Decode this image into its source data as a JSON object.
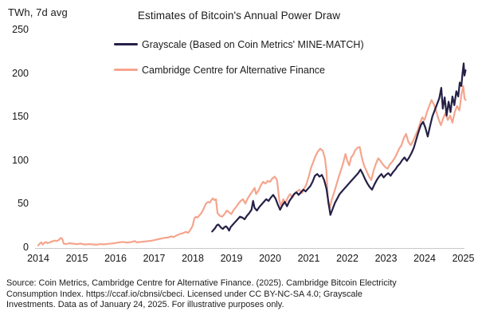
{
  "source": {
    "lines": [
      "Source: Coin Metrics, Cambridge Centre for Alternative Finance. (2025). Cambridge Bitcoin Electricity",
      "Consumption Index. https://ccaf.io/cbnsi/cbeci. Licensed under CC BY-NC-SA 4.0; Grayscale",
      "Investments. Data as of January 24, 2025. For illustrative purposes only."
    ]
  },
  "chart_data": {
    "type": "line",
    "title": "Estimates of Bitcoin's Annual Power Draw",
    "unit_label": "TWh, 7d avg",
    "xlabel": "",
    "ylabel": "TWh, 7d avg",
    "xlim": [
      2014,
      2025.1
    ],
    "ylim": [
      0,
      250
    ],
    "x_ticks": [
      2014,
      2015,
      2016,
      2017,
      2018,
      2019,
      2020,
      2021,
      2022,
      2023,
      2024,
      2025
    ],
    "y_ticks": [
      0,
      50,
      100,
      150,
      200,
      250
    ],
    "grid": false,
    "legend_position": "top",
    "axis_color": "#c9c9c9",
    "series": [
      {
        "id": "grayscale",
        "name": "Grayscale (Based on Coin Metrics' MINE-MATCH)",
        "color": "#252047",
        "points": [
          [
            2018.5,
            19
          ],
          [
            2018.54,
            21
          ],
          [
            2018.58,
            23
          ],
          [
            2018.62,
            26
          ],
          [
            2018.66,
            27
          ],
          [
            2018.7,
            25
          ],
          [
            2018.74,
            23
          ],
          [
            2018.78,
            22
          ],
          [
            2018.82,
            24
          ],
          [
            2018.86,
            25
          ],
          [
            2018.9,
            23
          ],
          [
            2018.94,
            20
          ],
          [
            2018.98,
            24
          ],
          [
            2019.04,
            27
          ],
          [
            2019.1,
            30
          ],
          [
            2019.16,
            33
          ],
          [
            2019.22,
            36
          ],
          [
            2019.28,
            35
          ],
          [
            2019.34,
            33
          ],
          [
            2019.4,
            37
          ],
          [
            2019.46,
            40
          ],
          [
            2019.52,
            44
          ],
          [
            2019.56,
            54
          ],
          [
            2019.6,
            46
          ],
          [
            2019.66,
            43
          ],
          [
            2019.72,
            47
          ],
          [
            2019.78,
            50
          ],
          [
            2019.84,
            53
          ],
          [
            2019.9,
            56
          ],
          [
            2019.96,
            54
          ],
          [
            2020.02,
            58
          ],
          [
            2020.08,
            61
          ],
          [
            2020.14,
            57
          ],
          [
            2020.2,
            50
          ],
          [
            2020.26,
            44
          ],
          [
            2020.32,
            49
          ],
          [
            2020.38,
            53
          ],
          [
            2020.44,
            48
          ],
          [
            2020.5,
            54
          ],
          [
            2020.56,
            58
          ],
          [
            2020.62,
            62
          ],
          [
            2020.68,
            64
          ],
          [
            2020.74,
            61
          ],
          [
            2020.8,
            64
          ],
          [
            2020.86,
            67
          ],
          [
            2020.92,
            65
          ],
          [
            2020.98,
            68
          ],
          [
            2021.04,
            71
          ],
          [
            2021.1,
            76
          ],
          [
            2021.16,
            83
          ],
          [
            2021.22,
            85
          ],
          [
            2021.28,
            82
          ],
          [
            2021.34,
            84
          ],
          [
            2021.4,
            78
          ],
          [
            2021.46,
            68
          ],
          [
            2021.52,
            50
          ],
          [
            2021.56,
            38
          ],
          [
            2021.62,
            45
          ],
          [
            2021.68,
            52
          ],
          [
            2021.74,
            57
          ],
          [
            2021.8,
            62
          ],
          [
            2021.86,
            65
          ],
          [
            2021.92,
            68
          ],
          [
            2021.98,
            71
          ],
          [
            2022.04,
            74
          ],
          [
            2022.1,
            77
          ],
          [
            2022.16,
            80
          ],
          [
            2022.22,
            83
          ],
          [
            2022.28,
            86
          ],
          [
            2022.34,
            90
          ],
          [
            2022.4,
            85
          ],
          [
            2022.46,
            79
          ],
          [
            2022.52,
            74
          ],
          [
            2022.58,
            70
          ],
          [
            2022.64,
            67
          ],
          [
            2022.7,
            73
          ],
          [
            2022.76,
            78
          ],
          [
            2022.82,
            82
          ],
          [
            2022.88,
            85
          ],
          [
            2022.94,
            81
          ],
          [
            2023.0,
            84
          ],
          [
            2023.06,
            86
          ],
          [
            2023.12,
            83
          ],
          [
            2023.18,
            87
          ],
          [
            2023.24,
            90
          ],
          [
            2023.3,
            94
          ],
          [
            2023.36,
            97
          ],
          [
            2023.42,
            101
          ],
          [
            2023.48,
            104
          ],
          [
            2023.54,
            100
          ],
          [
            2023.6,
            104
          ],
          [
            2023.66,
            109
          ],
          [
            2023.72,
            115
          ],
          [
            2023.78,
            124
          ],
          [
            2023.84,
            133
          ],
          [
            2023.9,
            141
          ],
          [
            2023.96,
            145
          ],
          [
            2024.02,
            138
          ],
          [
            2024.08,
            128
          ],
          [
            2024.14,
            140
          ],
          [
            2024.2,
            151
          ],
          [
            2024.26,
            158
          ],
          [
            2024.32,
            165
          ],
          [
            2024.38,
            172
          ],
          [
            2024.43,
            184
          ],
          [
            2024.47,
            160
          ],
          [
            2024.52,
            173
          ],
          [
            2024.57,
            152
          ],
          [
            2024.62,
            168
          ],
          [
            2024.67,
            156
          ],
          [
            2024.72,
            174
          ],
          [
            2024.77,
            164
          ],
          [
            2024.82,
            180
          ],
          [
            2024.87,
            174
          ],
          [
            2024.91,
            190
          ],
          [
            2024.95,
            186
          ],
          [
            2024.98,
            200
          ],
          [
            2025.01,
            212
          ],
          [
            2025.03,
            198
          ],
          [
            2025.06,
            204
          ]
        ]
      },
      {
        "id": "cambridge",
        "name": "Cambridge Centre for Alternative Finance",
        "color": "#F5A58D",
        "points": [
          [
            2014.0,
            3
          ],
          [
            2014.04,
            5
          ],
          [
            2014.08,
            6.5
          ],
          [
            2014.12,
            4
          ],
          [
            2014.16,
            6
          ],
          [
            2014.2,
            7
          ],
          [
            2014.24,
            5.5
          ],
          [
            2014.3,
            6.5
          ],
          [
            2014.36,
            7.5
          ],
          [
            2014.42,
            8.5
          ],
          [
            2014.48,
            8
          ],
          [
            2014.54,
            9.5
          ],
          [
            2014.58,
            11.5
          ],
          [
            2014.62,
            10.5
          ],
          [
            2014.66,
            5
          ],
          [
            2014.72,
            4.5
          ],
          [
            2014.8,
            5.5
          ],
          [
            2014.9,
            5
          ],
          [
            2015.0,
            4.5
          ],
          [
            2015.1,
            5
          ],
          [
            2015.2,
            4
          ],
          [
            2015.3,
            4.5
          ],
          [
            2015.4,
            4.2
          ],
          [
            2015.5,
            3.8
          ],
          [
            2015.6,
            4.5
          ],
          [
            2015.7,
            4.2
          ],
          [
            2015.8,
            4.8
          ],
          [
            2015.9,
            5.2
          ],
          [
            2016.0,
            5.8
          ],
          [
            2016.1,
            6.5
          ],
          [
            2016.2,
            7
          ],
          [
            2016.3,
            6.2
          ],
          [
            2016.4,
            6.8
          ],
          [
            2016.5,
            8
          ],
          [
            2016.55,
            6.5
          ],
          [
            2016.65,
            7
          ],
          [
            2016.75,
            7.5
          ],
          [
            2016.85,
            8
          ],
          [
            2016.95,
            8.5
          ],
          [
            2017.05,
            9.5
          ],
          [
            2017.15,
            10.5
          ],
          [
            2017.25,
            11.5
          ],
          [
            2017.35,
            12
          ],
          [
            2017.45,
            13.5
          ],
          [
            2017.5,
            12.5
          ],
          [
            2017.58,
            14.5
          ],
          [
            2017.66,
            16
          ],
          [
            2017.74,
            17
          ],
          [
            2017.82,
            18.5
          ],
          [
            2017.88,
            17.5
          ],
          [
            2017.94,
            21
          ],
          [
            2018.0,
            26
          ],
          [
            2018.04,
            34
          ],
          [
            2018.08,
            36
          ],
          [
            2018.12,
            35
          ],
          [
            2018.16,
            37
          ],
          [
            2018.22,
            40
          ],
          [
            2018.28,
            45
          ],
          [
            2018.34,
            51
          ],
          [
            2018.4,
            53
          ],
          [
            2018.44,
            52
          ],
          [
            2018.48,
            55
          ],
          [
            2018.52,
            57
          ],
          [
            2018.56,
            55
          ],
          [
            2018.6,
            56
          ],
          [
            2018.64,
            40
          ],
          [
            2018.7,
            37
          ],
          [
            2018.76,
            36
          ],
          [
            2018.82,
            39
          ],
          [
            2018.88,
            43
          ],
          [
            2018.94,
            41
          ],
          [
            2019.0,
            39
          ],
          [
            2019.06,
            44
          ],
          [
            2019.12,
            47
          ],
          [
            2019.18,
            51
          ],
          [
            2019.24,
            54
          ],
          [
            2019.3,
            56
          ],
          [
            2019.36,
            51
          ],
          [
            2019.42,
            57
          ],
          [
            2019.48,
            61
          ],
          [
            2019.54,
            65
          ],
          [
            2019.6,
            69
          ],
          [
            2019.64,
            62
          ],
          [
            2019.7,
            66
          ],
          [
            2019.76,
            72
          ],
          [
            2019.82,
            76
          ],
          [
            2019.88,
            74
          ],
          [
            2019.94,
            77
          ],
          [
            2020.0,
            76
          ],
          [
            2020.06,
            80
          ],
          [
            2020.12,
            82
          ],
          [
            2020.18,
            78
          ],
          [
            2020.24,
            55
          ],
          [
            2020.28,
            48
          ],
          [
            2020.34,
            56
          ],
          [
            2020.4,
            52
          ],
          [
            2020.46,
            58
          ],
          [
            2020.52,
            62
          ],
          [
            2020.58,
            58
          ],
          [
            2020.64,
            62
          ],
          [
            2020.7,
            65
          ],
          [
            2020.76,
            67
          ],
          [
            2020.82,
            63
          ],
          [
            2020.88,
            68
          ],
          [
            2020.94,
            73
          ],
          [
            2021.0,
            82
          ],
          [
            2021.06,
            92
          ],
          [
            2021.12,
            99
          ],
          [
            2021.18,
            106
          ],
          [
            2021.24,
            111
          ],
          [
            2021.3,
            114
          ],
          [
            2021.36,
            112
          ],
          [
            2021.42,
            103
          ],
          [
            2021.46,
            88
          ],
          [
            2021.5,
            52
          ],
          [
            2021.54,
            45
          ],
          [
            2021.6,
            56
          ],
          [
            2021.66,
            64
          ],
          [
            2021.72,
            73
          ],
          [
            2021.78,
            82
          ],
          [
            2021.84,
            90
          ],
          [
            2021.9,
            99
          ],
          [
            2021.95,
            108
          ],
          [
            2022.0,
            100
          ],
          [
            2022.05,
            95
          ],
          [
            2022.1,
            104
          ],
          [
            2022.15,
            107
          ],
          [
            2022.2,
            112
          ],
          [
            2022.26,
            115
          ],
          [
            2022.32,
            116
          ],
          [
            2022.38,
            103
          ],
          [
            2022.44,
            94
          ],
          [
            2022.5,
            88
          ],
          [
            2022.56,
            82
          ],
          [
            2022.62,
            78
          ],
          [
            2022.68,
            89
          ],
          [
            2022.74,
            97
          ],
          [
            2022.8,
            103
          ],
          [
            2022.86,
            100
          ],
          [
            2022.92,
            96
          ],
          [
            2022.98,
            93
          ],
          [
            2023.04,
            91
          ],
          [
            2023.1,
            96
          ],
          [
            2023.16,
            99
          ],
          [
            2023.22,
            103
          ],
          [
            2023.28,
            108
          ],
          [
            2023.34,
            114
          ],
          [
            2023.4,
            118
          ],
          [
            2023.46,
            126
          ],
          [
            2023.52,
            131
          ],
          [
            2023.58,
            122
          ],
          [
            2023.64,
            118
          ],
          [
            2023.7,
            123
          ],
          [
            2023.76,
            129
          ],
          [
            2023.82,
            135
          ],
          [
            2023.88,
            143
          ],
          [
            2023.94,
            150
          ],
          [
            2024.0,
            147
          ],
          [
            2024.06,
            156
          ],
          [
            2024.12,
            163
          ],
          [
            2024.18,
            170
          ],
          [
            2024.24,
            165
          ],
          [
            2024.3,
            157
          ],
          [
            2024.36,
            148
          ],
          [
            2024.42,
            141
          ],
          [
            2024.48,
            149
          ],
          [
            2024.54,
            155
          ],
          [
            2024.6,
            147
          ],
          [
            2024.66,
            152
          ],
          [
            2024.72,
            144
          ],
          [
            2024.78,
            156
          ],
          [
            2024.84,
            163
          ],
          [
            2024.9,
            158
          ],
          [
            2024.95,
            176
          ],
          [
            2025.0,
            186
          ],
          [
            2025.03,
            172
          ],
          [
            2025.06,
            170
          ]
        ]
      }
    ]
  }
}
